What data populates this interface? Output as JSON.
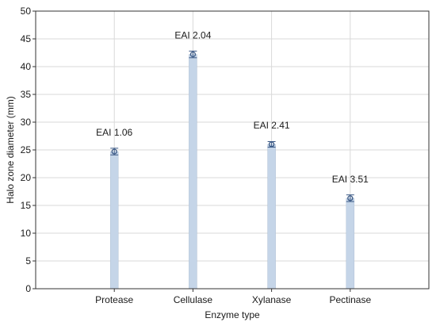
{
  "chart_data": {
    "type": "bar",
    "categories": [
      "Protease",
      "Cellulase",
      "Xylanase",
      "Pectinase"
    ],
    "values": [
      24.7,
      42.2,
      26.0,
      16.3
    ],
    "errors": [
      0.6,
      0.6,
      0.5,
      0.6
    ],
    "annotations": [
      "EAI 1.06",
      "EAI 2.04",
      "EAI 2.41",
      "EAI 3.51"
    ],
    "xlabel": "Enzyme type",
    "ylabel": "Halo zone diameter (mm)",
    "ylim": [
      0,
      50
    ],
    "yticks": [
      0,
      5,
      10,
      15,
      20,
      25,
      30,
      35,
      40,
      45,
      50
    ],
    "grid": true,
    "colors": {
      "bar": "#c5d5e8",
      "bar_edge": "#aebfd4",
      "marker": "#3c5a86",
      "grid": "#d9d9d9",
      "axis": "#333333"
    }
  }
}
